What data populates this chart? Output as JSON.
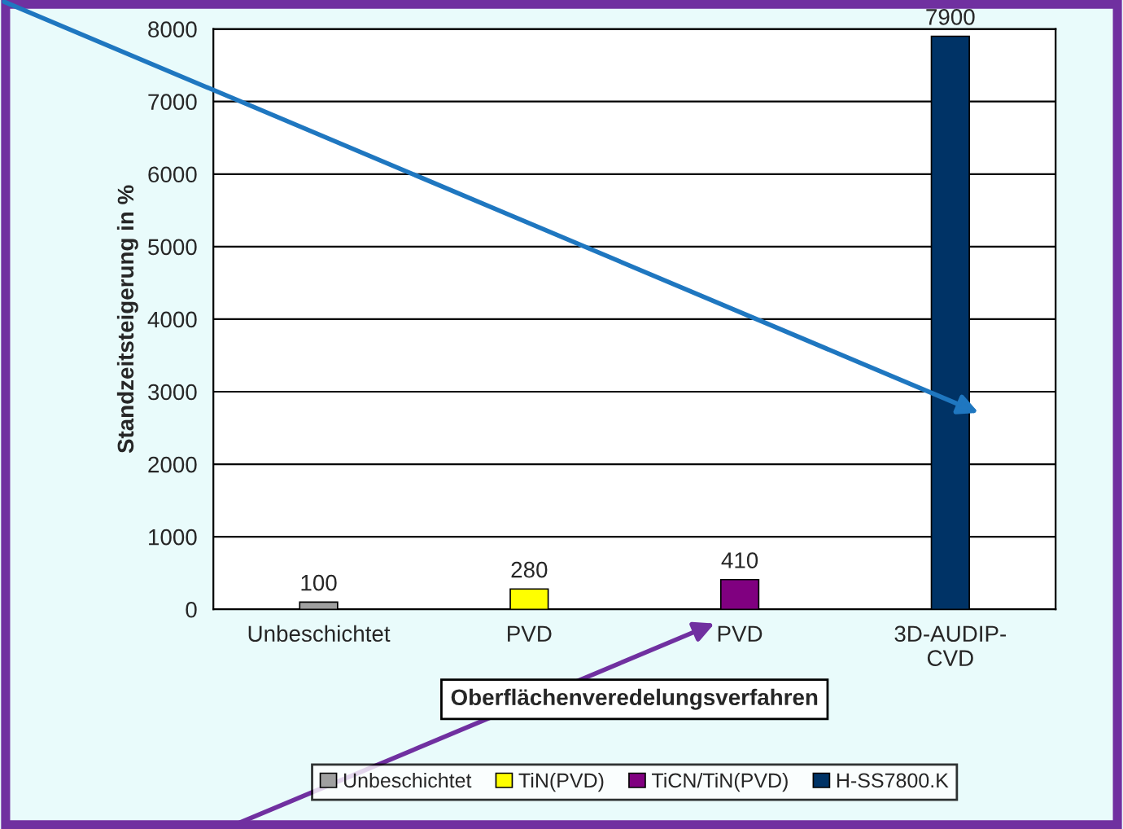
{
  "chart_data": {
    "type": "bar",
    "xlabel": "Oberflächenveredelungsverfahren",
    "ylabel": "Standzeitsteigerung in %",
    "categories": [
      "Unbeschichtet",
      "PVD",
      "PVD",
      "3D-AUDIP-\nCVD"
    ],
    "series": [
      {
        "name": "Unbeschichtet",
        "color": "#a0a0a0",
        "values": [
          100,
          null,
          null,
          null
        ]
      },
      {
        "name": "TiN(PVD)",
        "color": "#ffff00",
        "values": [
          null,
          280,
          null,
          null
        ]
      },
      {
        "name": "TiCN/TiN(PVD)",
        "color": "#800080",
        "values": [
          null,
          null,
          410,
          null
        ]
      },
      {
        "name": "H-SS7800.K",
        "color": "#003366",
        "values": [
          null,
          null,
          null,
          7900
        ]
      }
    ],
    "ylim": [
      0,
      8000
    ],
    "yticks": [
      0,
      1000,
      2000,
      3000,
      4000,
      5000,
      6000,
      7000,
      8000
    ],
    "grid": "y",
    "legend": "bottom",
    "data_labels": true
  }
}
